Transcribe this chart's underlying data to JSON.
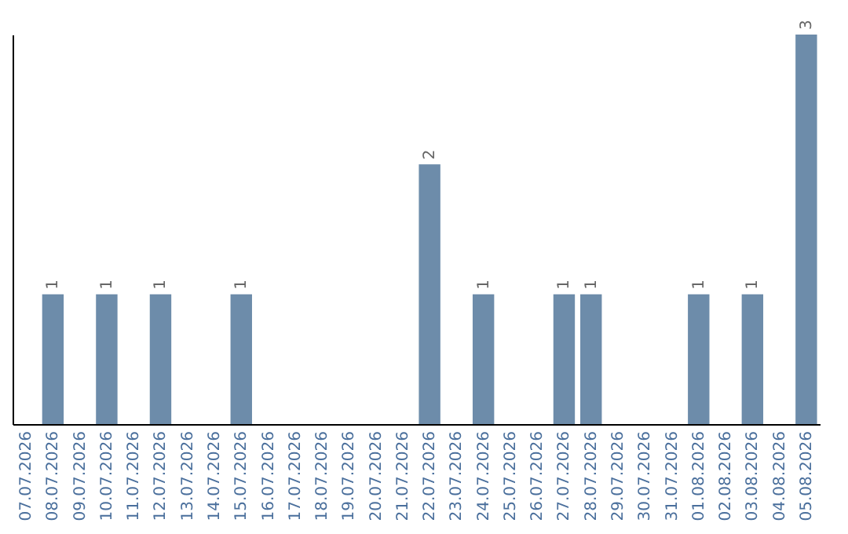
{
  "chart_data": {
    "type": "bar",
    "categories": [
      "07.07.2026",
      "08.07.2026",
      "09.07.2026",
      "10.07.2026",
      "11.07.2026",
      "12.07.2026",
      "13.07.2026",
      "14.07.2026",
      "15.07.2026",
      "16.07.2026",
      "17.07.2026",
      "18.07.2026",
      "19.07.2026",
      "20.07.2026",
      "21.07.2026",
      "22.07.2026",
      "23.07.2026",
      "24.07.2026",
      "25.07.2026",
      "26.07.2026",
      "27.07.2026",
      "28.07.2026",
      "29.07.2026",
      "30.07.2026",
      "31.07.2026",
      "01.08.2026",
      "02.08.2026",
      "03.08.2026",
      "04.08.2026",
      "05.08.2026"
    ],
    "values": [
      0,
      1,
      0,
      1,
      0,
      1,
      0,
      0,
      1,
      0,
      0,
      0,
      0,
      0,
      0,
      2,
      0,
      1,
      0,
      0,
      1,
      1,
      0,
      0,
      0,
      1,
      0,
      1,
      0,
      3
    ],
    "value_labels": [
      null,
      "1",
      null,
      "1",
      null,
      "1",
      null,
      null,
      "1",
      null,
      null,
      null,
      null,
      null,
      null,
      "2",
      null,
      "1",
      null,
      null,
      "1",
      "1",
      null,
      null,
      null,
      "1",
      null,
      "1",
      null,
      "3"
    ],
    "color": "#6d8caa",
    "grid": false
  }
}
